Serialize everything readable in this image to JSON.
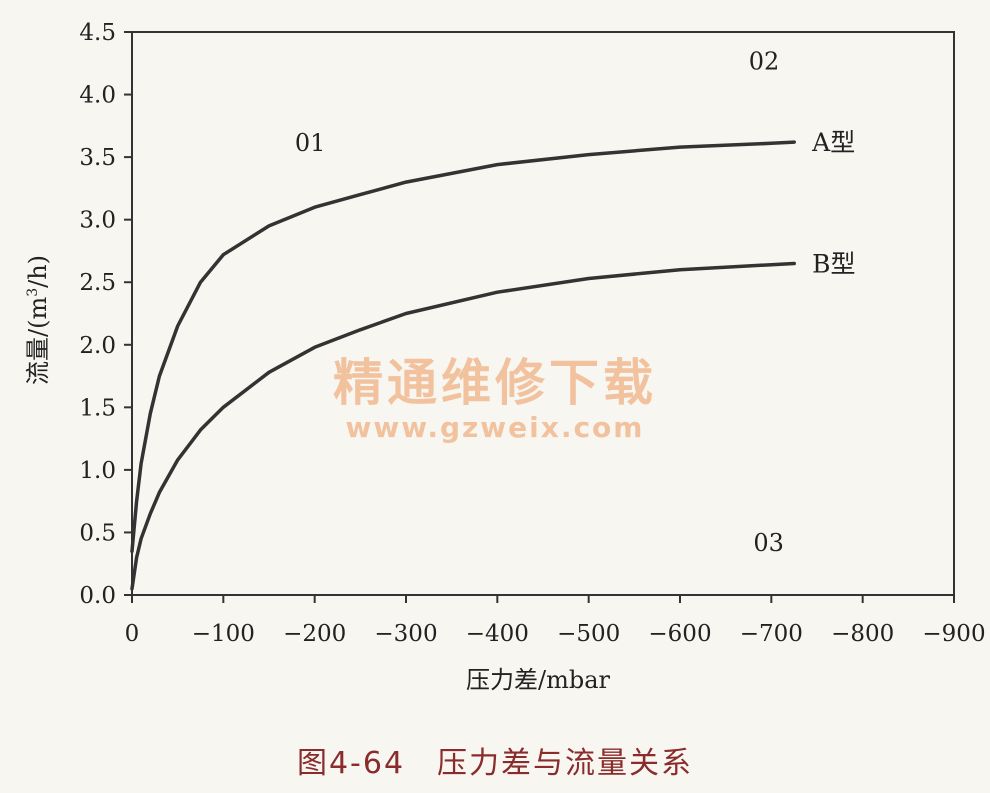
{
  "chart_data": {
    "type": "line",
    "xlabel": "压力差/mbar",
    "ylabel_prefix": "流量/(m",
    "ylabel_sup": "3",
    "ylabel_suffix": "/h)",
    "xlim": [
      0,
      -900
    ],
    "ylim": [
      0.0,
      4.5
    ],
    "x_ticks": [
      0,
      -100,
      -200,
      -300,
      -400,
      -500,
      -600,
      -700,
      -800,
      -900
    ],
    "x_tick_labels": [
      "0",
      "−100",
      "−200",
      "−300",
      "−400",
      "−500",
      "−600",
      "−700",
      "−800",
      "−900"
    ],
    "y_ticks": [
      0.0,
      0.5,
      1.0,
      1.5,
      2.0,
      2.5,
      3.0,
      3.5,
      4.0,
      4.5
    ],
    "y_tick_labels": [
      "0.0",
      "0.5",
      "1.0",
      "1.5",
      "2.0",
      "2.5",
      "3.0",
      "3.5",
      "4.0",
      "4.5"
    ],
    "grid": false,
    "series": [
      {
        "name": "A型",
        "color": "#333333",
        "x": [
          0,
          -5,
          -10,
          -20,
          -30,
          -50,
          -75,
          -100,
          -150,
          -200,
          -250,
          -300,
          -400,
          -500,
          -600,
          -700,
          -725
        ],
        "y": [
          0.35,
          0.75,
          1.05,
          1.45,
          1.75,
          2.15,
          2.5,
          2.72,
          2.95,
          3.1,
          3.2,
          3.3,
          3.44,
          3.52,
          3.58,
          3.61,
          3.62
        ]
      },
      {
        "name": "B型",
        "color": "#333333",
        "x": [
          0,
          -5,
          -10,
          -20,
          -30,
          -50,
          -75,
          -100,
          -150,
          -200,
          -250,
          -300,
          -400,
          -500,
          -600,
          -700,
          -725
        ],
        "y": [
          0.05,
          0.3,
          0.45,
          0.65,
          0.82,
          1.08,
          1.32,
          1.5,
          1.78,
          1.98,
          2.12,
          2.25,
          2.42,
          2.53,
          2.6,
          2.64,
          2.65
        ]
      }
    ],
    "annotations": [
      {
        "text": "01",
        "x": -195,
        "y": 3.55
      },
      {
        "text": "02",
        "x": -692,
        "y": 4.2
      },
      {
        "text": "03",
        "x": -697,
        "y": 0.35
      }
    ]
  },
  "caption": "图4-64　压力差与流量关系",
  "watermark": {
    "line1": "精通维修下载",
    "line2": "www.gzweix.com"
  }
}
